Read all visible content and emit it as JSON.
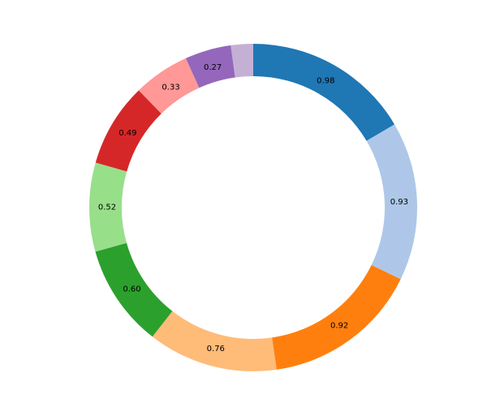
{
  "chart_data": {
    "type": "donut",
    "values": [
      0.98,
      0.93,
      0.92,
      0.76,
      0.6,
      0.52,
      0.49,
      0.33,
      0.27,
      0.13
    ],
    "value_labels": [
      "0.98",
      "0.93",
      "0.92",
      "0.76",
      "0.60",
      "0.52",
      "0.49",
      "0.33",
      "0.27",
      null
    ],
    "colors": [
      "#1f77b4",
      "#aec7e8",
      "#ff7f0e",
      "#ffbb78",
      "#2ca02c",
      "#98df8a",
      "#d62728",
      "#ff9896",
      "#9467bd",
      "#c5b0d5"
    ],
    "start_angle": 90,
    "direction": "clockwise"
  }
}
